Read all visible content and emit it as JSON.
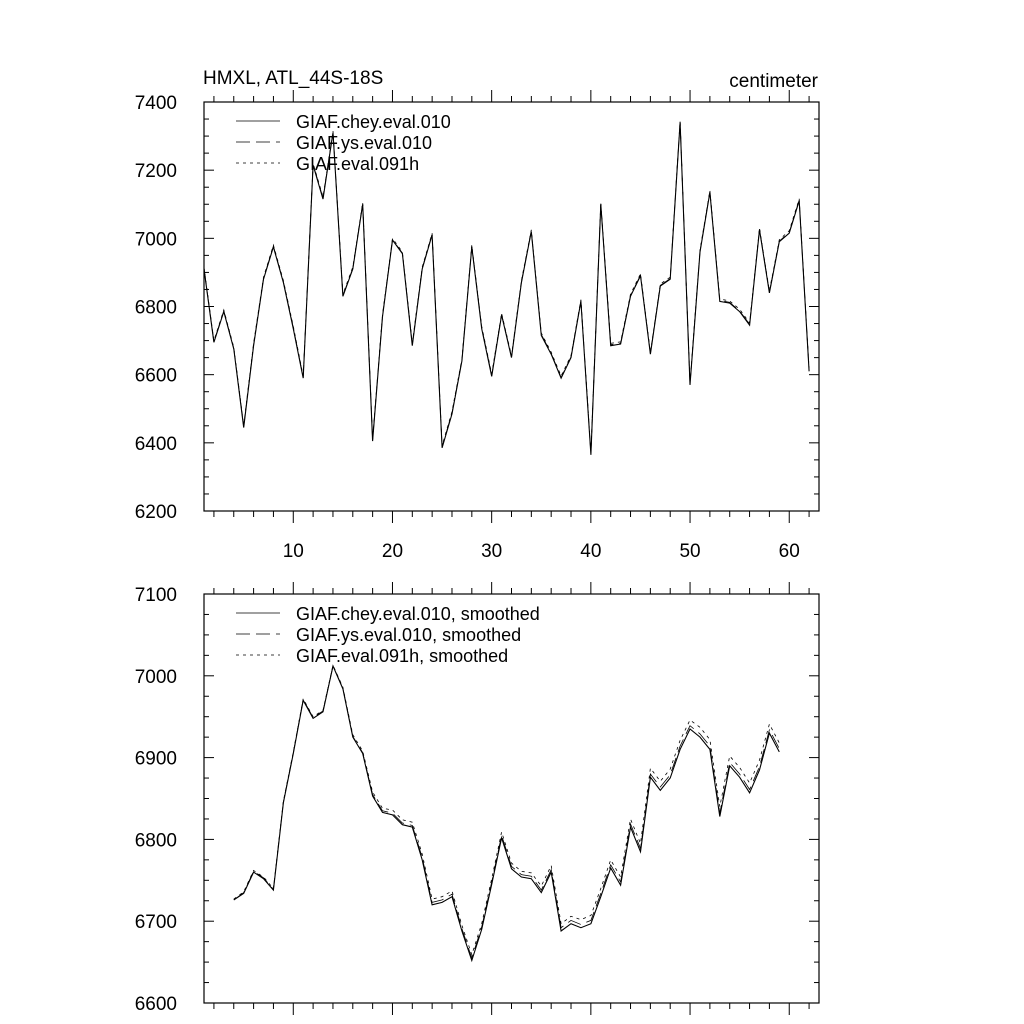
{
  "chart_data": [
    {
      "type": "line",
      "title": "HMXL, ATL_44S-18S",
      "units": "centimeter",
      "xlim": [
        1,
        63
      ],
      "ylim": [
        6200,
        7400
      ],
      "xticks": [
        10,
        20,
        30,
        40,
        50,
        60
      ],
      "yticks": [
        6200,
        6400,
        6600,
        6800,
        7000,
        7200,
        7400
      ],
      "x": [
        1,
        2,
        3,
        4,
        5,
        6,
        7,
        8,
        9,
        10,
        11,
        12,
        13,
        14,
        15,
        16,
        17,
        18,
        19,
        20,
        21,
        22,
        23,
        24,
        25,
        26,
        27,
        28,
        29,
        30,
        31,
        32,
        33,
        34,
        35,
        36,
        37,
        38,
        39,
        40,
        41,
        42,
        43,
        44,
        45,
        46,
        47,
        48,
        49,
        50,
        51,
        52,
        53,
        54,
        55,
        56,
        57,
        58,
        59,
        60,
        61,
        62
      ],
      "series": [
        {
          "name": "GIAF.chey.eval.010",
          "dash": "solid",
          "values": [
            6910,
            6695,
            6785,
            6675,
            6445,
            6685,
            6880,
            6975,
            6870,
            6735,
            6590,
            7215,
            7115,
            7310,
            6830,
            6910,
            7100,
            6405,
            6770,
            6995,
            6955,
            6685,
            6910,
            7010,
            6385,
            6485,
            6640,
            6975,
            6735,
            6595,
            6775,
            6650,
            6870,
            7020,
            6715,
            6660,
            6590,
            6650,
            6815,
            6365,
            7100,
            6685,
            6690,
            6830,
            6890,
            6660,
            6860,
            6880,
            7340,
            6570,
            6960,
            7135,
            6815,
            6810,
            6785,
            6745,
            7025,
            6840,
            6990,
            7015,
            7110,
            6610
          ]
        },
        {
          "name": "GIAF.ys.eval.010",
          "dash": "long",
          "values": [
            6912,
            6697,
            6787,
            6677,
            6448,
            6688,
            6882,
            6977,
            6872,
            6738,
            6592,
            7217,
            7118,
            7312,
            6832,
            6912,
            7102,
            6408,
            6772,
            6996,
            6957,
            6688,
            6912,
            7012,
            6388,
            6488,
            6642,
            6977,
            6738,
            6598,
            6777,
            6652,
            6872,
            7022,
            6718,
            6662,
            6592,
            6652,
            6817,
            6368,
            7102,
            6688,
            6692,
            6832,
            6892,
            6662,
            6862,
            6882,
            7342,
            6572,
            6962,
            7137,
            6818,
            6812,
            6787,
            6748,
            7027,
            6842,
            6992,
            7017,
            7112,
            6612
          ]
        },
        {
          "name": "GIAF.eval.091h",
          "dash": "short",
          "values": [
            6915,
            6700,
            6790,
            6680,
            6452,
            6692,
            6886,
            6980,
            6876,
            6742,
            6596,
            7220,
            7122,
            7315,
            6836,
            6916,
            7105,
            6412,
            6776,
            7000,
            6960,
            6692,
            6916,
            7015,
            6392,
            6492,
            6646,
            6980,
            6742,
            6602,
            6780,
            6656,
            6876,
            7025,
            6722,
            6666,
            6596,
            6656,
            6820,
            6372,
            7105,
            6692,
            6696,
            6836,
            6896,
            6666,
            6866,
            6886,
            7345,
            6576,
            6966,
            7140,
            6822,
            6816,
            6792,
            6752,
            7030,
            6846,
            6996,
            7022,
            7116,
            6616
          ]
        }
      ]
    },
    {
      "type": "line",
      "xlim": [
        1,
        63
      ],
      "ylim": [
        6600,
        7100
      ],
      "xticks": [
        10,
        20,
        30,
        40,
        50,
        60
      ],
      "yticks": [
        6600,
        6700,
        6800,
        6900,
        7000,
        7100
      ],
      "x": [
        4,
        5,
        6,
        7,
        8,
        9,
        10,
        11,
        12,
        13,
        14,
        15,
        16,
        17,
        18,
        19,
        20,
        21,
        22,
        23,
        24,
        25,
        26,
        27,
        28,
        29,
        30,
        31,
        32,
        33,
        34,
        35,
        36,
        37,
        38,
        39,
        40,
        41,
        42,
        43,
        44,
        45,
        46,
        47,
        48,
        49,
        50,
        51,
        52,
        53,
        54,
        55,
        56,
        57,
        58,
        59
      ],
      "series": [
        {
          "name": "GIAF.chey.eval.010, smoothed",
          "dash": "solid",
          "values": [
            6726,
            6734,
            6760,
            6752,
            6738,
            6845,
            6905,
            6970,
            6948,
            6956,
            7012,
            6984,
            6925,
            6905,
            6853,
            6833,
            6830,
            6818,
            6815,
            6775,
            6720,
            6723,
            6730,
            6688,
            6652,
            6690,
            6745,
            6802,
            6764,
            6754,
            6752,
            6735,
            6760,
            6688,
            6697,
            6692,
            6697,
            6730,
            6765,
            6744,
            6815,
            6785,
            6876,
            6860,
            6875,
            6910,
            6935,
            6925,
            6910,
            6828,
            6890,
            6876,
            6857,
            6885,
            6930,
            6907
          ]
        },
        {
          "name": "GIAF.ys.eval.010, smoothed",
          "dash": "long",
          "values": [
            6726,
            6735,
            6761,
            6753,
            6739,
            6846,
            6906,
            6971,
            6949,
            6957,
            7012,
            6985,
            6926,
            6906,
            6855,
            6835,
            6832,
            6820,
            6817,
            6778,
            6723,
            6726,
            6733,
            6691,
            6655,
            6693,
            6748,
            6805,
            6767,
            6757,
            6755,
            6738,
            6763,
            6692,
            6701,
            6696,
            6701,
            6734,
            6769,
            6748,
            6819,
            6789,
            6880,
            6864,
            6879,
            6914,
            6939,
            6929,
            6914,
            6832,
            6894,
            6880,
            6861,
            6889,
            6934,
            6911
          ]
        },
        {
          "name": "GIAF.eval.091h, smoothed",
          "dash": "short",
          "values": [
            6727,
            6736,
            6762,
            6754,
            6740,
            6847,
            6907,
            6972,
            6950,
            6958,
            7013,
            6986,
            6928,
            6908,
            6858,
            6838,
            6836,
            6824,
            6821,
            6782,
            6727,
            6730,
            6737,
            6695,
            6659,
            6697,
            6752,
            6809,
            6771,
            6761,
            6759,
            6743,
            6768,
            6697,
            6706,
            6702,
            6707,
            6740,
            6775,
            6754,
            6825,
            6795,
            6887,
            6871,
            6886,
            6921,
            6946,
            6937,
            6922,
            6840,
            6902,
            6888,
            6869,
            6897,
            6941,
            6918
          ]
        }
      ]
    }
  ]
}
